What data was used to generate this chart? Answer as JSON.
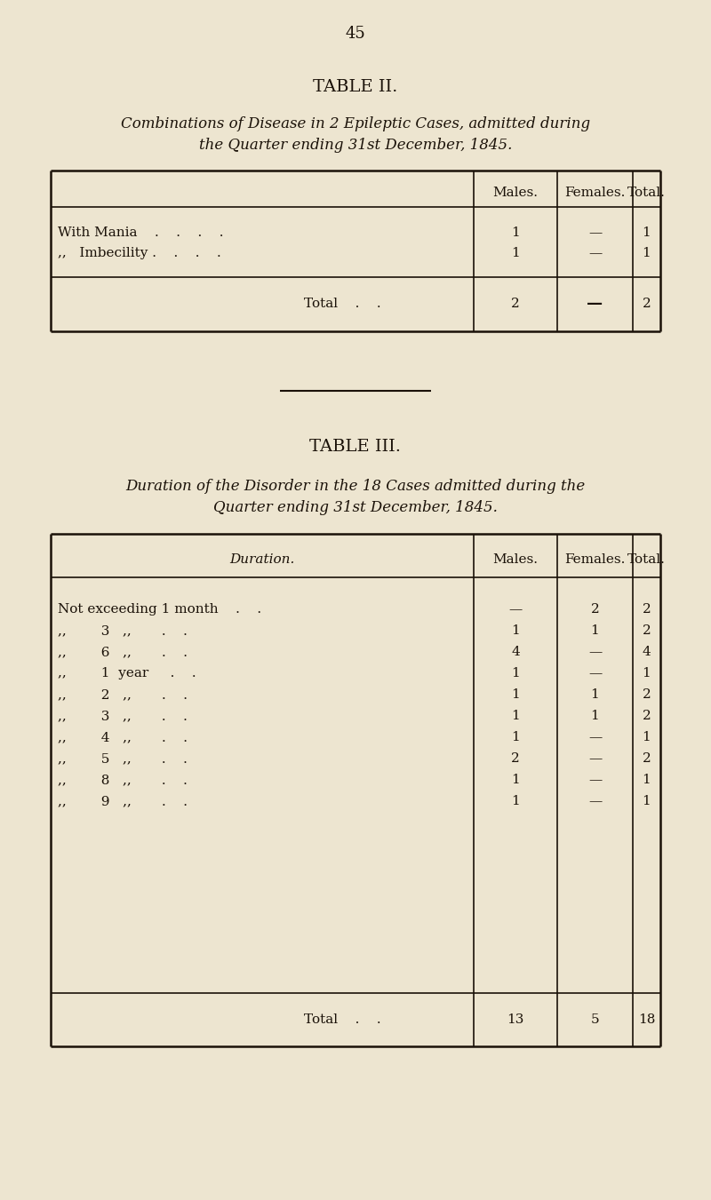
{
  "bg_color": "#ede5d0",
  "text_color": "#1a1108",
  "page_number": "45",
  "table2": {
    "title": "TABLE II.",
    "subtitle_line1": "Combinations of Disease in 2 Epileptic Cases, admitted during",
    "subtitle_line2": "the Quarter ending 31st December, 1845.",
    "col_headers": [
      "Males.",
      "Females.",
      "Total."
    ],
    "rows": [
      {
        "label": "With Mania    .    .    .    .",
        "males": "1",
        "females": "—",
        "total": "1"
      },
      {
        "label": ",,   Imbecility .    .    .    .",
        "males": "1",
        "females": "—",
        "total": "1"
      }
    ],
    "total_label": "Total    .    .",
    "total_males": "2",
    "total_females": "—",
    "total_total": "2"
  },
  "table3": {
    "title": "TABLE III.",
    "subtitle_line1": "Duration of the Disorder in the 18 Cases admitted during the",
    "subtitle_line2": "Quarter ending 31st December, 1845.",
    "col_headers": [
      "Males.",
      "Females.",
      "Total."
    ],
    "duration_col_header": "Duration.",
    "rows": [
      {
        "label": "Not exceeding 1 month    .    .",
        "males": "—",
        "females": "2",
        "total": "2"
      },
      {
        "label": ",,        3   ,,       .    .",
        "males": "1",
        "females": "1",
        "total": "2"
      },
      {
        "label": ",,        6   ,,       .    .",
        "males": "4",
        "females": "—",
        "total": "4"
      },
      {
        "label": ",,        1  year     .    .",
        "males": "1",
        "females": "—",
        "total": "1"
      },
      {
        "label": ",,        2   ,,       .    .",
        "males": "1",
        "females": "1",
        "total": "2"
      },
      {
        "label": ",,        3   ,,       .    .",
        "males": "1",
        "females": "1",
        "total": "2"
      },
      {
        "label": ",,        4   ,,       .    .",
        "males": "1",
        "females": "—",
        "total": "1"
      },
      {
        "label": ",,        5   ,,       .    .",
        "males": "2",
        "females": "—",
        "total": "2"
      },
      {
        "label": ",,        8   ,,       .    .",
        "males": "1",
        "females": "—",
        "total": "1"
      },
      {
        "label": ",,        9   ,,       .    .",
        "males": "1",
        "females": "—",
        "total": "1"
      }
    ],
    "total_label": "Total    .    .",
    "total_males": "13",
    "total_females": "5",
    "total_total": "18"
  }
}
